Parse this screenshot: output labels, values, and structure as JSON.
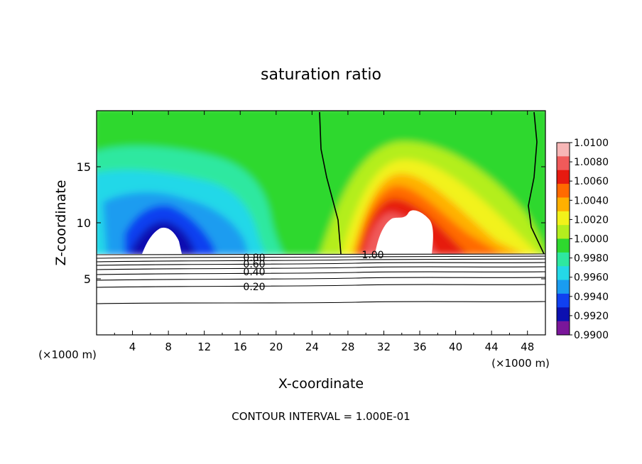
{
  "chart_data": {
    "type": "heatmap",
    "title": "saturation ratio",
    "xlabel": "X-coordinate",
    "ylabel": "Z-coordinate",
    "x_unit": "(×1000 m)",
    "y_unit": "(×1000 m)",
    "xlim": [
      0,
      50
    ],
    "ylim": [
      0,
      20
    ],
    "x_ticks": [
      4,
      8,
      12,
      16,
      20,
      24,
      28,
      32,
      36,
      40,
      44,
      48
    ],
    "y_ticks": [
      5,
      10,
      15
    ],
    "colorbar": {
      "levels": [
        "1.0100",
        "1.0080",
        "1.0060",
        "1.0040",
        "1.0020",
        "1.0000",
        "0.9980",
        "0.9960",
        "0.9940",
        "0.9920",
        "0.9900"
      ],
      "colors": [
        "#f7b6b6",
        "#f05a5a",
        "#e61a10",
        "#ff6a00",
        "#ffb000",
        "#f2f21a",
        "#b4ee1e",
        "#2ed82e",
        "#2ee8a0",
        "#24d8e8",
        "#1a9cf0",
        "#1040f0",
        "#0c10b0",
        "#7a169a"
      ]
    },
    "contours": [
      {
        "label": "0.20",
        "z": 4.5
      },
      {
        "label": "0.40",
        "z": 5.8
      },
      {
        "label": "0.60",
        "z": 6.5
      },
      {
        "label": "0.80",
        "z": 7.0
      },
      {
        "label": "1.00",
        "z": 7.2
      }
    ],
    "footer": "CONTOUR INTERVAL = 1.000E-01"
  }
}
